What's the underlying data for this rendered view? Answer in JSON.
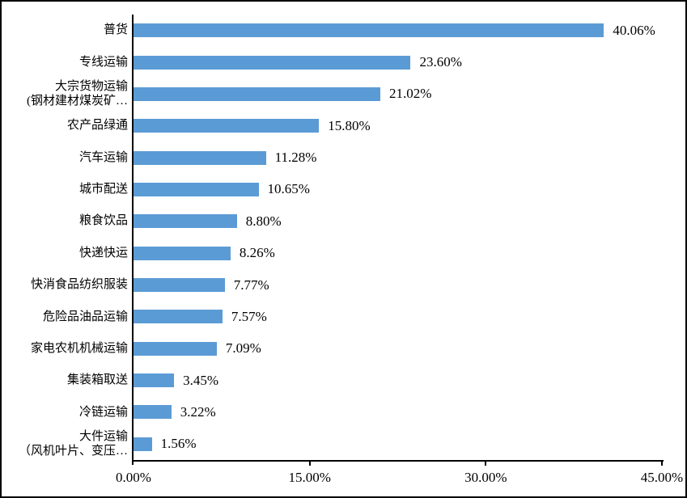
{
  "chart_data": {
    "type": "bar",
    "orientation": "horizontal",
    "title": "",
    "categories": [
      "普货",
      "专线运输",
      "大宗货物运输\n(钢材建材煤炭矿…",
      "农产品绿通",
      "汽车运输",
      "城市配送",
      "粮食饮品",
      "快递快运",
      "快消食品纺织服装",
      "危险品油品运输",
      "家电农机机械运输",
      "集装箱取送",
      "冷链运输",
      "大件运输\n（风机叶片、变压…"
    ],
    "values": [
      40.06,
      23.6,
      21.02,
      15.8,
      11.28,
      10.65,
      8.8,
      8.26,
      7.77,
      7.57,
      7.09,
      3.45,
      3.22,
      1.56
    ],
    "data_labels": [
      "40.06%",
      "23.60%",
      "21.02%",
      "15.80%",
      "11.28%",
      "10.65%",
      "8.80%",
      "8.26%",
      "7.77%",
      "7.57%",
      "7.09%",
      "3.45%",
      "3.22%",
      "1.56%"
    ],
    "x_axis": {
      "tick_labels": [
        "0.00%",
        "15.00%",
        "30.00%",
        "45.00%"
      ],
      "min": 0,
      "max": 45,
      "grid": false
    },
    "bar_color": "#5B9BD5",
    "axis_color": "#000000",
    "text_color": "#000000",
    "legend": false
  }
}
